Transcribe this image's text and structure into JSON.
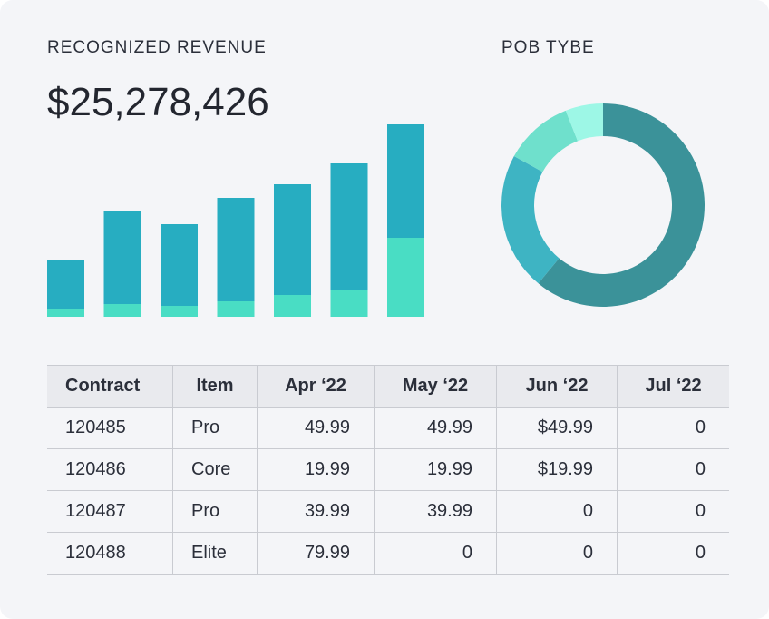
{
  "revenue": {
    "title": "RECOGNIZED REVENUE",
    "total": "$25,278,426"
  },
  "pob": {
    "title": "POB TYBE"
  },
  "chart_data": [
    {
      "type": "bar",
      "stacked": true,
      "categories": [
        "",
        "",
        "",
        "",
        "",
        "",
        ""
      ],
      "series": [
        {
          "values": [
            8,
            14,
            12,
            17,
            24,
            30,
            87
          ],
          "color": "#49ddc4"
        },
        {
          "values": [
            55,
            103,
            90,
            114,
            122,
            139,
            125
          ],
          "color": "#27adc1"
        }
      ],
      "ylim": [
        0,
        214
      ],
      "grid": false,
      "axes": false
    },
    {
      "type": "pie",
      "donut": true,
      "values": [
        61,
        22,
        11,
        6
      ],
      "colors": [
        "#3b9299",
        "#3eb4c3",
        "#6fe0cc",
        "#9df7e6"
      ]
    }
  ],
  "table": {
    "headers": [
      "Contract",
      "Item",
      "Apr ‘22",
      "May ‘22",
      "Jun ‘22",
      "Jul ‘22"
    ],
    "rows": [
      [
        "120485",
        "Pro",
        "49.99",
        "49.99",
        "$49.99",
        "0"
      ],
      [
        "120486",
        "Core",
        "19.99",
        "19.99",
        "$19.99",
        "0"
      ],
      [
        "120487",
        "Pro",
        "39.99",
        "39.99",
        "0",
        "0"
      ],
      [
        "120488",
        "Elite",
        "79.99",
        "0",
        "0",
        "0"
      ]
    ]
  }
}
